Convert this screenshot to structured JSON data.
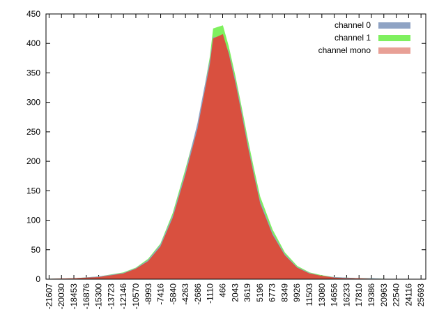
{
  "chart_data": {
    "type": "area",
    "title": "",
    "xlabel": "",
    "ylabel": "",
    "ylim": [
      0,
      450
    ],
    "xlim": [
      -22000,
      26300
    ],
    "yticks": [
      0,
      50,
      100,
      150,
      200,
      250,
      300,
      350,
      400,
      450
    ],
    "xticks": [
      -21607,
      -20030,
      -18453,
      -16876,
      -15300,
      -13723,
      -12146,
      -10570,
      -8993,
      -7416,
      -5840,
      -4263,
      -2686,
      -1110,
      466,
      2043,
      3619,
      5196,
      6773,
      8349,
      9926,
      11503,
      13080,
      14656,
      16233,
      17810,
      19386,
      20963,
      22540,
      24116,
      25693
    ],
    "grid": false,
    "legend_position": "top-right",
    "series": [
      {
        "name": "channel 0",
        "color": "#8fa3c4",
        "x": [
          -21607,
          -18453,
          -15300,
          -12146,
          -10570,
          -8993,
          -7416,
          -5840,
          -4263,
          -2686,
          -1900,
          -1110,
          -700,
          466,
          1200,
          2043,
          2800,
          3619,
          4400,
          5196,
          6773,
          8349,
          9926,
          11503,
          13080,
          14656,
          16233,
          17810,
          19386,
          20963,
          22540,
          24116,
          25693
        ],
        "values": [
          0,
          1,
          4,
          10,
          18,
          32,
          58,
          108,
          180,
          265,
          320,
          372,
          410,
          410,
          385,
          338,
          288,
          230,
          180,
          132,
          78,
          42,
          20,
          10,
          5,
          3,
          2,
          1,
          1,
          0,
          0,
          0,
          0
        ]
      },
      {
        "name": "channel 1",
        "color": "#7ff05f",
        "x": [
          -21607,
          -18453,
          -15300,
          -12146,
          -10570,
          -8993,
          -7416,
          -5840,
          -4263,
          -2686,
          -1900,
          -1110,
          -700,
          466,
          1200,
          2043,
          2800,
          3619,
          4400,
          5196,
          6773,
          8349,
          9926,
          11503,
          13080,
          14656,
          16233,
          17810,
          19386,
          20963,
          22540,
          24116,
          25693
        ],
        "values": [
          0,
          1,
          4,
          11,
          19,
          34,
          60,
          112,
          185,
          262,
          318,
          378,
          425,
          430,
          395,
          345,
          295,
          238,
          188,
          140,
          84,
          45,
          22,
          11,
          6,
          3,
          2,
          1,
          1,
          0,
          0,
          0,
          0
        ]
      },
      {
        "name": "channel mono",
        "color": "#d9503f",
        "legend_color": "#e8a096",
        "x": [
          -21607,
          -18453,
          -15300,
          -12146,
          -10570,
          -8993,
          -7416,
          -5840,
          -4263,
          -2686,
          -1900,
          -1110,
          -700,
          466,
          1200,
          2043,
          2800,
          3619,
          4400,
          5196,
          6773,
          8349,
          9926,
          11503,
          13080,
          14656,
          16233,
          17810,
          19386,
          20963,
          22540,
          24116,
          25693
        ],
        "values": [
          0,
          1,
          3,
          9,
          17,
          30,
          55,
          104,
          175,
          255,
          310,
          365,
          408,
          415,
          382,
          333,
          283,
          225,
          176,
          128,
          75,
          40,
          19,
          9,
          5,
          2,
          1,
          1,
          0,
          0,
          0,
          0,
          0
        ]
      }
    ]
  }
}
